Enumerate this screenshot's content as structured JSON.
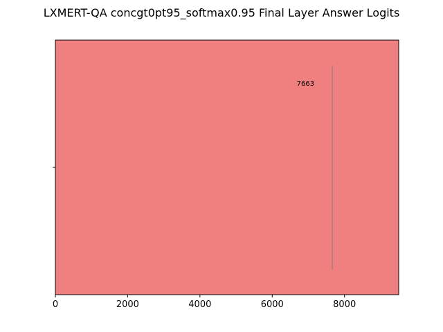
{
  "chart_data": {
    "type": "bar",
    "orientation": "horizontal",
    "title": "LXMERT-QA concgt0pt95_softmax0.95 Final Layer Answer Logits",
    "xlabel": "",
    "ylabel": "",
    "xlim": [
      0,
      9500
    ],
    "x_ticks": [
      0,
      2000,
      4000,
      6000,
      8000
    ],
    "x_tick_labels": [
      "0",
      "2000",
      "4000",
      "6000",
      "8000"
    ],
    "categories": [
      ""
    ],
    "values": [
      9500
    ],
    "bar_color": "#f08080",
    "marker": {
      "value": 7663,
      "label": "7663",
      "color": "#808080"
    }
  }
}
